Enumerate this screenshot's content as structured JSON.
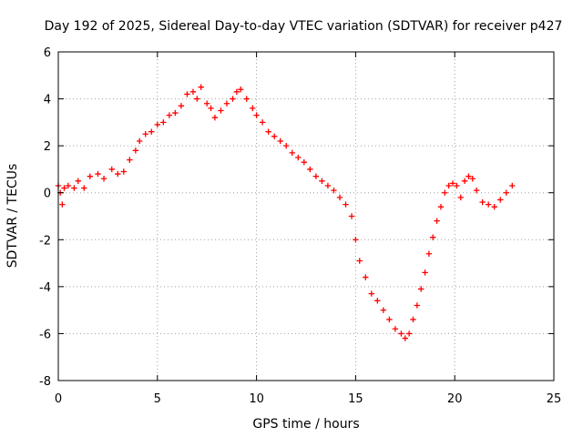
{
  "chart_data": {
    "type": "scatter",
    "title": "Day 192 of 2025, Sidereal Day-to-day VTEC variation (SDTVAR) for receiver p427",
    "xlabel": "GPS time / hours",
    "ylabel": "SDTVAR / TECUs",
    "xlim": [
      0,
      25
    ],
    "ylim": [
      -8,
      6
    ],
    "xticks": [
      0,
      5,
      10,
      15,
      20,
      25
    ],
    "yticks": [
      -8,
      -6,
      -4,
      -2,
      0,
      2,
      4,
      6
    ],
    "grid": true,
    "marker": "+",
    "series": [
      {
        "name": "SDTVAR",
        "color": "#ff0000",
        "x": [
          0.0,
          0.1,
          0.2,
          0.3,
          0.5,
          0.8,
          1.0,
          1.3,
          1.6,
          2.0,
          2.3,
          2.7,
          3.0,
          3.3,
          3.6,
          3.9,
          4.1,
          4.4,
          4.7,
          5.0,
          5.3,
          5.6,
          5.9,
          6.2,
          6.5,
          6.8,
          7.0,
          7.2,
          7.5,
          7.7,
          7.9,
          8.2,
          8.5,
          8.8,
          9.0,
          9.2,
          9.5,
          9.8,
          10.0,
          10.3,
          10.6,
          10.9,
          11.2,
          11.5,
          11.8,
          12.1,
          12.4,
          12.7,
          13.0,
          13.3,
          13.6,
          13.9,
          14.2,
          14.5,
          14.8,
          15.0,
          15.2,
          15.5,
          15.8,
          16.1,
          16.4,
          16.7,
          17.0,
          17.3,
          17.5,
          17.7,
          17.9,
          18.1,
          18.3,
          18.5,
          18.7,
          18.9,
          19.1,
          19.3,
          19.5,
          19.7,
          19.9,
          20.1,
          20.3,
          20.5,
          20.7,
          20.9,
          21.1,
          21.4,
          21.7,
          22.0,
          22.3,
          22.6,
          22.9
        ],
        "y": [
          0.3,
          0.0,
          -0.5,
          0.2,
          0.3,
          0.2,
          0.5,
          0.2,
          0.7,
          0.8,
          0.6,
          1.0,
          0.8,
          0.9,
          1.4,
          1.8,
          2.2,
          2.5,
          2.6,
          2.9,
          3.0,
          3.3,
          3.4,
          3.7,
          4.2,
          4.3,
          4.0,
          4.5,
          3.8,
          3.6,
          3.2,
          3.5,
          3.8,
          4.0,
          4.3,
          4.4,
          4.0,
          3.6,
          3.3,
          3.0,
          2.6,
          2.4,
          2.2,
          2.0,
          1.7,
          1.5,
          1.3,
          1.0,
          0.7,
          0.5,
          0.3,
          0.1,
          -0.2,
          -0.5,
          -1.0,
          -2.0,
          -2.9,
          -3.6,
          -4.3,
          -4.6,
          -5.0,
          -5.4,
          -5.8,
          -6.0,
          -6.2,
          -6.0,
          -5.4,
          -4.8,
          -4.1,
          -3.4,
          -2.6,
          -1.9,
          -1.2,
          -0.6,
          0.0,
          0.3,
          0.4,
          0.3,
          -0.2,
          0.5,
          0.7,
          0.6,
          0.1,
          -0.4,
          -0.5,
          -0.6,
          -0.3,
          0.0,
          0.3
        ]
      }
    ]
  }
}
